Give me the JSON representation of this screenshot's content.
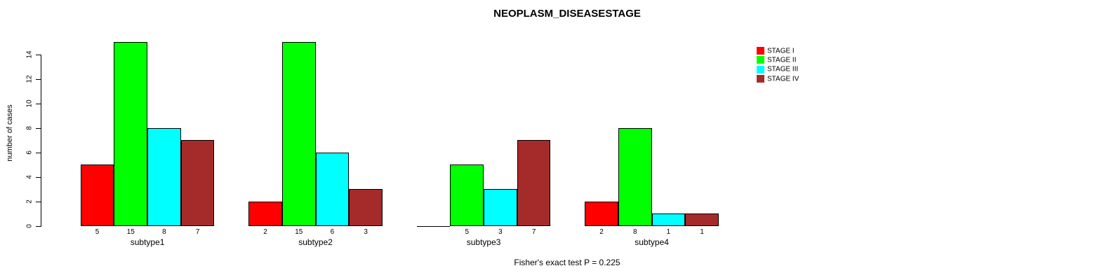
{
  "figure": {
    "title": "NEOPLASM_DISEASESTAGE",
    "footer_annotation": "Fisher's exact test P = 0.225"
  },
  "chart_data": {
    "type": "bar",
    "title": "NEOPLASM_DISEASESTAGE",
    "xlabel": "",
    "ylabel": "number of cases",
    "ylim": [
      0,
      14
    ],
    "yticks": [
      0,
      2,
      4,
      6,
      8,
      10,
      12,
      14
    ],
    "categories": [
      "subtype1",
      "subtype2",
      "subtype3",
      "subtype4"
    ],
    "series": [
      {
        "name": "STAGE I",
        "color": "#ff0000",
        "values": [
          5,
          2,
          0,
          2
        ]
      },
      {
        "name": "STAGE II",
        "color": "#00ff00",
        "values": [
          15,
          15,
          5,
          8
        ]
      },
      {
        "name": "STAGE III",
        "color": "#00ffff",
        "values": [
          8,
          6,
          3,
          1
        ]
      },
      {
        "name": "STAGE IV",
        "color": "#a52a2a",
        "values": [
          7,
          3,
          7,
          1
        ]
      }
    ],
    "bar_value_labels_shown": true,
    "zero_value_labels_hidden": true,
    "legend_position": "top-right",
    "grid": false,
    "annotation": "Fisher's exact test P = 0.225"
  }
}
